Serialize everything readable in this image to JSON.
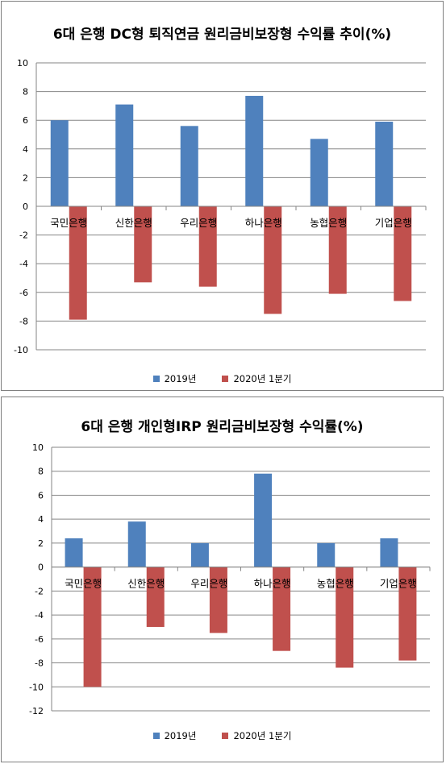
{
  "chart_data": [
    {
      "type": "bar",
      "title": "6대 은행 DC형 퇴직연금 원리금비보장형 수익률 추이(%)",
      "categories": [
        "국민은행",
        "신한은행",
        "우리은행",
        "하나은행",
        "농협은행",
        "기업은행"
      ],
      "series": [
        {
          "name": "2019년",
          "color": "#4f81bd",
          "values": [
            6.0,
            7.1,
            5.6,
            7.7,
            4.7,
            5.9
          ]
        },
        {
          "name": "2020년 1분기",
          "color": "#c0504d",
          "values": [
            -7.9,
            -5.3,
            -5.6,
            -7.5,
            -6.1,
            -6.6
          ]
        }
      ],
      "ylim": [
        -10,
        10
      ],
      "yticks": [
        10,
        8,
        6,
        4,
        2,
        0,
        -2,
        -4,
        -6,
        -8,
        -10
      ],
      "grid": true,
      "legend": "bottom"
    },
    {
      "type": "bar",
      "title": "6대 은행 개인형IRP 원리금비보장형 수익률(%)",
      "categories": [
        "국민은행",
        "신한은행",
        "우리은행",
        "하나은행",
        "농협은행",
        "기업은행"
      ],
      "series": [
        {
          "name": "2019년",
          "color": "#4f81bd",
          "values": [
            2.4,
            3.8,
            2.0,
            7.8,
            2.0,
            2.4
          ]
        },
        {
          "name": "2020년 1분기",
          "color": "#c0504d",
          "values": [
            -10.0,
            -5.0,
            -5.5,
            -7.0,
            -8.4,
            -7.8
          ]
        }
      ],
      "ylim": [
        -12,
        10
      ],
      "yticks": [
        10,
        8,
        6,
        4,
        2,
        0,
        -2,
        -4,
        -6,
        -8,
        -10,
        -12
      ],
      "grid": true,
      "legend": "bottom"
    }
  ]
}
